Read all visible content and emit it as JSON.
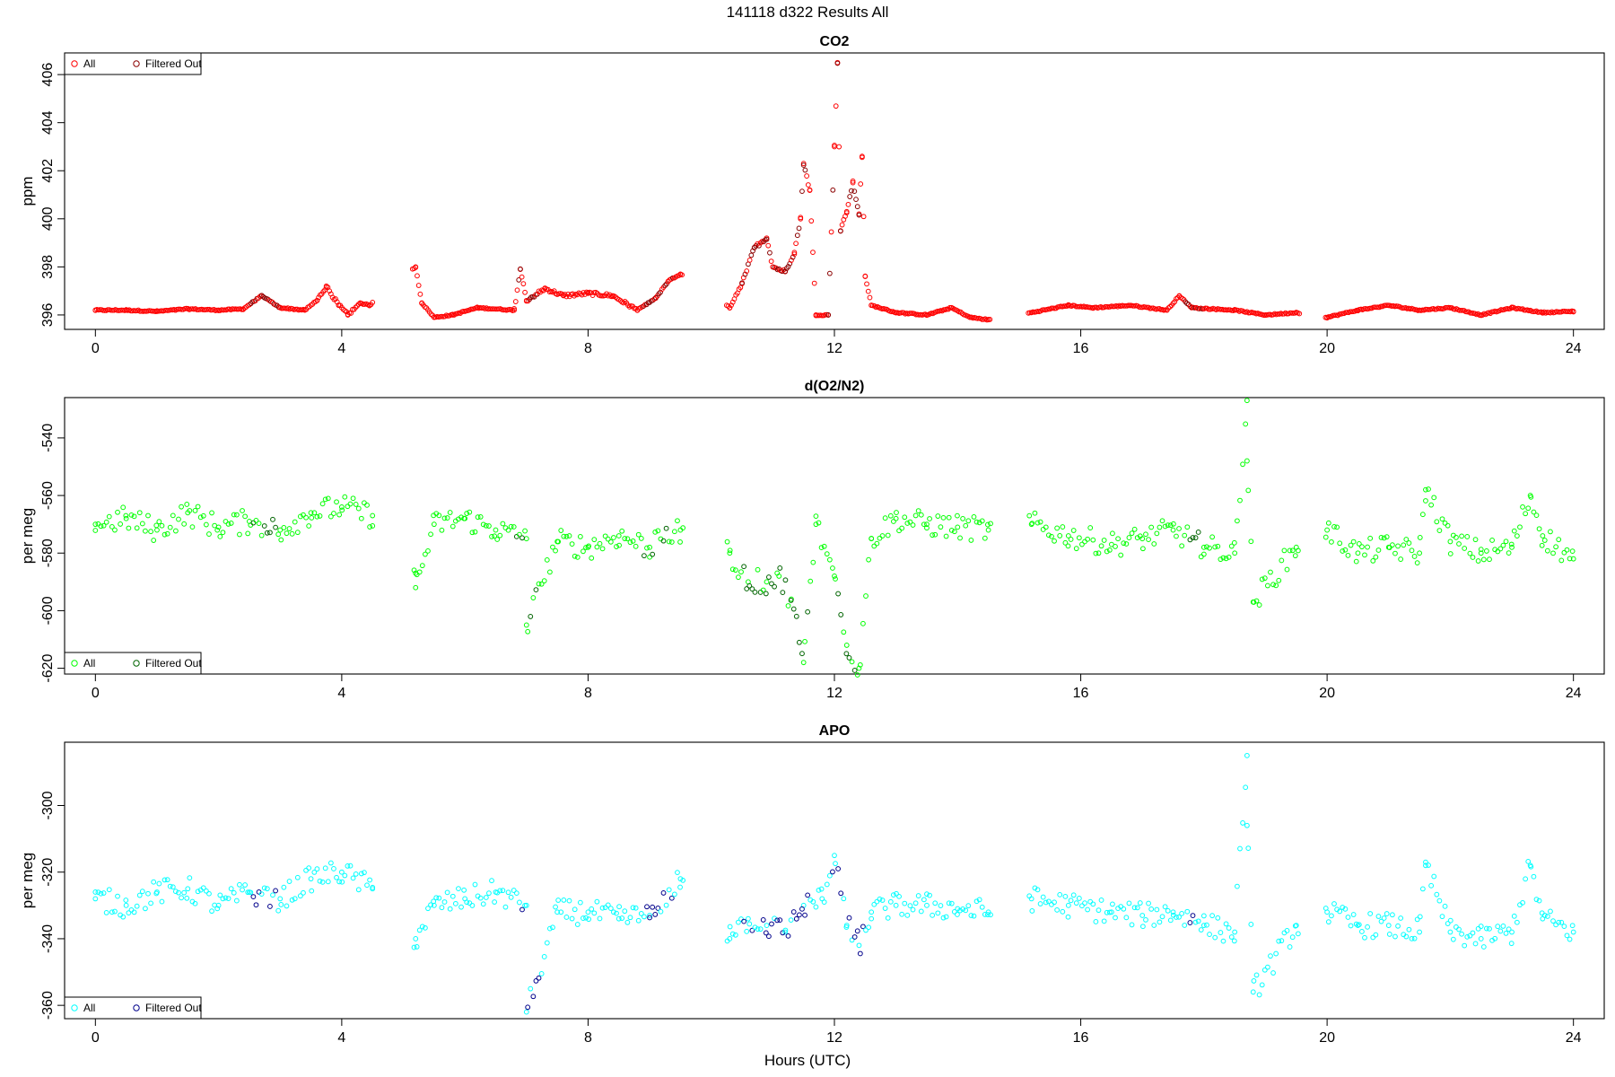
{
  "figure": {
    "title": "141118   d322   Results All",
    "xlabel": "Hours (UTC)"
  },
  "chart_data": [
    {
      "type": "scatter",
      "title": "CO2",
      "xlabel": "",
      "ylabel": "ppm",
      "xlim": [
        -0.5,
        24.5
      ],
      "ylim": [
        395.4,
        406.9
      ],
      "x_ticks": [
        0,
        4,
        8,
        12,
        16,
        20,
        24
      ],
      "y_ticks": [
        396,
        398,
        400,
        402,
        404,
        406
      ],
      "legend": {
        "position": "top-left",
        "entries": [
          "All",
          "Filtered Out"
        ]
      },
      "series": [
        {
          "name": "All",
          "color": "#ff0000",
          "filtered_color": "#8b0000",
          "points": [
            [
              0.0,
              396.2
            ],
            [
              0.5,
              396.2
            ],
            [
              1.0,
              396.15
            ],
            [
              1.5,
              396.25
            ],
            [
              2.0,
              396.2
            ],
            [
              2.4,
              396.25
            ],
            [
              2.7,
              396.8
            ],
            [
              3.0,
              396.3
            ],
            [
              3.4,
              396.2
            ],
            [
              3.6,
              396.6
            ],
            [
              3.75,
              397.2
            ],
            [
              3.95,
              396.4
            ],
            [
              4.1,
              396.0
            ],
            [
              4.3,
              396.5
            ],
            [
              4.45,
              396.4
            ],
            [
              5.2,
              398.0
            ],
            [
              5.3,
              396.5
            ],
            [
              5.5,
              395.9
            ],
            [
              5.8,
              396.0
            ],
            [
              6.2,
              396.3
            ],
            [
              6.8,
              396.2
            ],
            [
              6.9,
              397.9
            ],
            [
              7.0,
              396.6
            ],
            [
              7.3,
              397.1
            ],
            [
              7.6,
              396.8
            ],
            [
              8.0,
              396.9
            ],
            [
              8.4,
              396.8
            ],
            [
              8.8,
              396.2
            ],
            [
              9.1,
              396.7
            ],
            [
              9.3,
              397.4
            ],
            [
              9.5,
              397.7
            ],
            [
              10.3,
              396.3
            ],
            [
              10.5,
              397.3
            ],
            [
              10.7,
              398.8
            ],
            [
              10.9,
              399.2
            ],
            [
              11.0,
              398.0
            ],
            [
              11.2,
              397.8
            ],
            [
              11.35,
              398.6
            ],
            [
              11.45,
              400.0
            ],
            [
              11.5,
              402.3
            ],
            [
              11.6,
              401.2
            ],
            [
              11.7,
              396.0
            ],
            [
              11.9,
              396.0
            ],
            [
              12.0,
              403.0
            ],
            [
              12.05,
              406.5
            ],
            [
              12.1,
              399.5
            ],
            [
              12.2,
              400.3
            ],
            [
              12.3,
              401.5
            ],
            [
              12.4,
              400.2
            ],
            [
              12.45,
              402.6
            ],
            [
              12.5,
              397.6
            ],
            [
              12.6,
              396.4
            ],
            [
              13.0,
              396.1
            ],
            [
              13.5,
              396.0
            ],
            [
              13.9,
              396.3
            ],
            [
              14.2,
              395.9
            ],
            [
              14.5,
              395.8
            ],
            [
              15.2,
              396.1
            ],
            [
              15.8,
              396.4
            ],
            [
              16.2,
              396.3
            ],
            [
              16.8,
              396.4
            ],
            [
              17.4,
              396.2
            ],
            [
              17.6,
              396.8
            ],
            [
              17.8,
              396.3
            ],
            [
              18.5,
              396.2
            ],
            [
              19.0,
              396.0
            ],
            [
              19.5,
              396.1
            ],
            [
              20.0,
              395.9
            ],
            [
              20.5,
              396.2
            ],
            [
              21.0,
              396.4
            ],
            [
              21.5,
              396.2
            ],
            [
              22.0,
              396.3
            ],
            [
              22.5,
              396.0
            ],
            [
              23.0,
              396.3
            ],
            [
              23.5,
              396.1
            ],
            [
              24.0,
              396.15
            ]
          ]
        }
      ]
    },
    {
      "type": "scatter",
      "title": "d(O2/N2)",
      "xlabel": "",
      "ylabel": "per meg",
      "xlim": [
        -0.5,
        24.5
      ],
      "ylim": [
        -622,
        -526
      ],
      "x_ticks": [
        0,
        4,
        8,
        12,
        16,
        20,
        24
      ],
      "y_ticks": [
        -540,
        -560,
        -580,
        -600,
        -620
      ],
      "legend": {
        "position": "bottom-left",
        "entries": [
          "All",
          "Filtered Out"
        ]
      },
      "series": [
        {
          "name": "All",
          "color": "#00ff00",
          "filtered_color": "#006400",
          "points": [
            [
              0.0,
              -570
            ],
            [
              0.5,
              -568
            ],
            [
              1.0,
              -572
            ],
            [
              1.5,
              -566
            ],
            [
              2.0,
              -571
            ],
            [
              2.5,
              -569
            ],
            [
              3.0,
              -572
            ],
            [
              3.5,
              -566
            ],
            [
              4.0,
              -564
            ],
            [
              4.5,
              -567
            ],
            [
              5.2,
              -587
            ],
            [
              5.2,
              -592
            ],
            [
              5.5,
              -570
            ],
            [
              6.0,
              -568
            ],
            [
              6.5,
              -572
            ],
            [
              7.0,
              -575
            ],
            [
              7.0,
              -605
            ],
            [
              7.5,
              -576
            ],
            [
              8.0,
              -578
            ],
            [
              8.5,
              -574
            ],
            [
              9.0,
              -578
            ],
            [
              9.5,
              -572
            ],
            [
              10.3,
              -580
            ],
            [
              10.6,
              -590
            ],
            [
              10.9,
              -590
            ],
            [
              11.1,
              -588
            ],
            [
              11.3,
              -596
            ],
            [
              11.5,
              -618
            ],
            [
              11.7,
              -570
            ],
            [
              12.0,
              -588
            ],
            [
              12.2,
              -612
            ],
            [
              12.4,
              -620
            ],
            [
              12.6,
              -575
            ],
            [
              13.0,
              -568
            ],
            [
              13.5,
              -570
            ],
            [
              14.0,
              -571
            ],
            [
              14.5,
              -572
            ],
            [
              15.2,
              -570
            ],
            [
              15.8,
              -574
            ],
            [
              16.5,
              -577
            ],
            [
              17.0,
              -575
            ],
            [
              17.5,
              -572
            ],
            [
              18.0,
              -578
            ],
            [
              18.5,
              -580
            ],
            [
              18.7,
              -527
            ],
            [
              18.7,
              -548
            ],
            [
              18.8,
              -597
            ],
            [
              19.5,
              -578
            ],
            [
              20.0,
              -572
            ],
            [
              20.5,
              -580
            ],
            [
              21.0,
              -578
            ],
            [
              21.5,
              -580
            ],
            [
              21.6,
              -558
            ],
            [
              22.0,
              -576
            ],
            [
              22.5,
              -580
            ],
            [
              23.0,
              -578
            ],
            [
              23.3,
              -560
            ],
            [
              23.5,
              -574
            ],
            [
              24.0,
              -582
            ]
          ]
        }
      ]
    },
    {
      "type": "scatter",
      "title": "APO",
      "xlabel": "Hours (UTC)",
      "ylabel": "per meg",
      "xlim": [
        -0.5,
        24.5
      ],
      "ylim": [
        -364,
        -281
      ],
      "x_ticks": [
        0,
        4,
        8,
        12,
        16,
        20,
        24
      ],
      "y_ticks": [
        -300,
        -320,
        -340,
        -360
      ],
      "legend": {
        "position": "bottom-left",
        "entries": [
          "All",
          "Filtered Out"
        ]
      },
      "series": [
        {
          "name": "All",
          "color": "#00ffff",
          "filtered_color": "#00008b",
          "points": [
            [
              0.0,
              -328
            ],
            [
              0.5,
              -330
            ],
            [
              1.0,
              -326
            ],
            [
              1.5,
              -325
            ],
            [
              2.0,
              -330
            ],
            [
              2.5,
              -326
            ],
            [
              3.0,
              -328
            ],
            [
              3.5,
              -322
            ],
            [
              4.0,
              -320
            ],
            [
              4.5,
              -325
            ],
            [
              5.2,
              -340
            ],
            [
              5.5,
              -330
            ],
            [
              6.0,
              -328
            ],
            [
              6.5,
              -326
            ],
            [
              7.0,
              -330
            ],
            [
              7.0,
              -362
            ],
            [
              7.5,
              -332
            ],
            [
              8.0,
              -332
            ],
            [
              8.5,
              -334
            ],
            [
              9.0,
              -333
            ],
            [
              9.5,
              -322
            ],
            [
              10.3,
              -340
            ],
            [
              10.6,
              -334
            ],
            [
              10.9,
              -336
            ],
            [
              11.2,
              -338
            ],
            [
              11.5,
              -330
            ],
            [
              11.8,
              -328
            ],
            [
              12.0,
              -315
            ],
            [
              12.2,
              -336
            ],
            [
              12.4,
              -342
            ],
            [
              12.6,
              -332
            ],
            [
              13.0,
              -330
            ],
            [
              13.5,
              -330
            ],
            [
              14.0,
              -331
            ],
            [
              14.5,
              -332
            ],
            [
              15.2,
              -328
            ],
            [
              15.8,
              -330
            ],
            [
              16.5,
              -332
            ],
            [
              17.0,
              -333
            ],
            [
              17.5,
              -332
            ],
            [
              18.0,
              -336
            ],
            [
              18.5,
              -338
            ],
            [
              18.7,
              -285
            ],
            [
              18.7,
              -306
            ],
            [
              18.8,
              -356
            ],
            [
              19.5,
              -336
            ],
            [
              20.0,
              -332
            ],
            [
              20.5,
              -336
            ],
            [
              21.0,
              -336
            ],
            [
              21.5,
              -338
            ],
            [
              21.6,
              -318
            ],
            [
              22.0,
              -338
            ],
            [
              22.5,
              -340
            ],
            [
              23.0,
              -338
            ],
            [
              23.3,
              -318
            ],
            [
              23.5,
              -334
            ],
            [
              24.0,
              -338
            ]
          ]
        }
      ]
    }
  ]
}
